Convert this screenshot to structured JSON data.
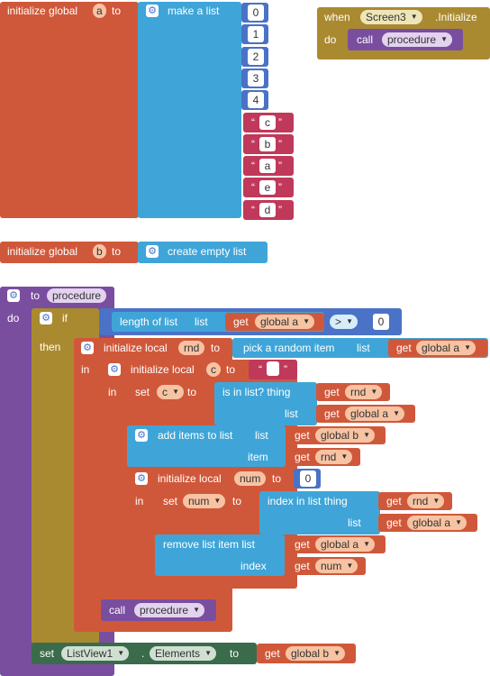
{
  "init_a": {
    "keyword": "initialize global",
    "var": "a",
    "to": "to",
    "list_label": "make a list",
    "numbers": [
      "0",
      "1",
      "2",
      "3",
      "4"
    ],
    "letters": [
      "c",
      "b",
      "a",
      "e",
      "d"
    ]
  },
  "init_b": {
    "keyword": "initialize global",
    "var": "b",
    "to": "to",
    "value_label": "create empty list"
  },
  "when": {
    "when": "when",
    "component": "Screen3",
    "event": ".Initialize",
    "do": "do",
    "call": "call",
    "proc": "procedure"
  },
  "proc": {
    "to": "to",
    "name": "procedure",
    "do": "do",
    "if": "if",
    "then": "then",
    "length_label": "length of list",
    "list_kw": "list",
    "get": "get",
    "global_a": "global a",
    "gt": ">",
    "zero": "0",
    "init_local": "initialize local",
    "rnd": "rnd",
    "to_kw": "to",
    "pick": "pick a random item",
    "in": "in",
    "c": "c",
    "empty_str": "",
    "set": "set",
    "is_in_list": "is in list? thing",
    "add_items": "add items to list",
    "item_kw": "item",
    "global_b": "global b",
    "num": "num",
    "num_zero": "0",
    "index_in_list": "index in list  thing",
    "remove_item": "remove list item  list",
    "index_kw": "index",
    "call": "call",
    "proc_name": "procedure",
    "set_comp": "ListView1",
    "dot": ".",
    "prop": "Elements"
  }
}
